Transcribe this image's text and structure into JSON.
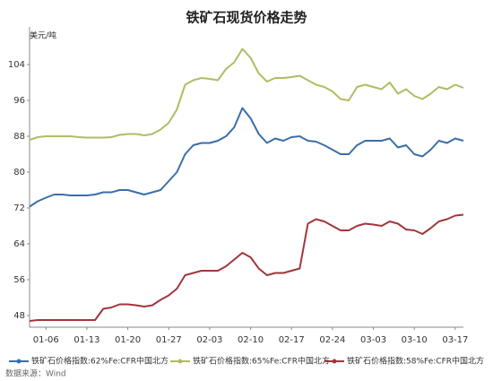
{
  "chart_data": {
    "type": "line",
    "title": "铁矿石现货价格走势",
    "y_label": "美元/吨",
    "source": "数据来源：Wind",
    "categories": [
      null,
      null,
      "01-06",
      null,
      null,
      null,
      null,
      "01-13",
      null,
      null,
      null,
      null,
      "01-20",
      null,
      null,
      null,
      null,
      "01-27",
      null,
      null,
      null,
      null,
      "02-03",
      null,
      null,
      null,
      null,
      "02-10",
      null,
      null,
      null,
      null,
      "02-17",
      null,
      null,
      null,
      null,
      "02-24",
      null,
      null,
      null,
      null,
      "03-03",
      null,
      null,
      null,
      null,
      "03-10",
      null,
      null,
      null,
      null,
      "03-17",
      null
    ],
    "ylim": [
      45.4,
      112.4
    ],
    "yticks": [
      48,
      56,
      64,
      72,
      80,
      88,
      96,
      104
    ],
    "grid": false,
    "legend": "bottom",
    "series": [
      {
        "name": "铁矿石价格指数:62%Fe:CFR中国北方",
        "color": "#3b6ea8",
        "values": [
          72.3,
          73.5,
          74.3,
          75,
          75,
          74.8,
          74.8,
          74.8,
          75,
          75.5,
          75.5,
          76,
          76,
          75.5,
          75,
          75.5,
          76,
          78,
          80,
          84,
          86,
          86.5,
          86.5,
          87,
          88,
          90,
          94.3,
          92,
          88.5,
          86.5,
          87.5,
          87,
          87.8,
          88,
          87,
          86.8,
          86,
          85,
          84,
          84,
          86,
          87,
          87,
          87,
          87.5,
          85.5,
          86,
          84,
          83.5,
          85,
          87,
          86.5,
          87.5,
          87
        ]
      },
      {
        "name": "铁矿石价格指数:65%Fe:CFR中国北方",
        "color": "#b2bb63",
        "values": [
          87.2,
          87.8,
          88,
          88,
          88,
          88,
          87.8,
          87.7,
          87.7,
          87.7,
          87.8,
          88.3,
          88.5,
          88.5,
          88.2,
          88.5,
          89.5,
          91,
          94,
          99.5,
          100.5,
          101,
          100.8,
          100.5,
          103,
          104.5,
          107.5,
          105.5,
          102,
          100.2,
          101,
          101,
          101.2,
          101.5,
          100.5,
          99.5,
          99,
          98,
          96.3,
          96,
          99,
          99.5,
          99,
          98.5,
          100,
          97.5,
          98.5,
          97,
          96.3,
          97.5,
          99,
          98.5,
          99.5,
          98.8
        ]
      },
      {
        "name": "铁矿石价格指数:58%Fe:CFR中国北方",
        "color": "#a2363c",
        "values": [
          46.8,
          47,
          47,
          47,
          47,
          47,
          47,
          47,
          47,
          49.5,
          49.8,
          50.5,
          50.5,
          50.3,
          50,
          50.3,
          51.5,
          52.5,
          54,
          57,
          57.5,
          58,
          58,
          58,
          59,
          60.5,
          62,
          61,
          58.5,
          57,
          57.5,
          57.5,
          58,
          58.5,
          68.5,
          69.5,
          69,
          68,
          67,
          67,
          68,
          68.5,
          68.3,
          68,
          69,
          68.5,
          67.2,
          67,
          66.2,
          67.5,
          69,
          69.5,
          70.3,
          70.5
        ]
      }
    ]
  }
}
